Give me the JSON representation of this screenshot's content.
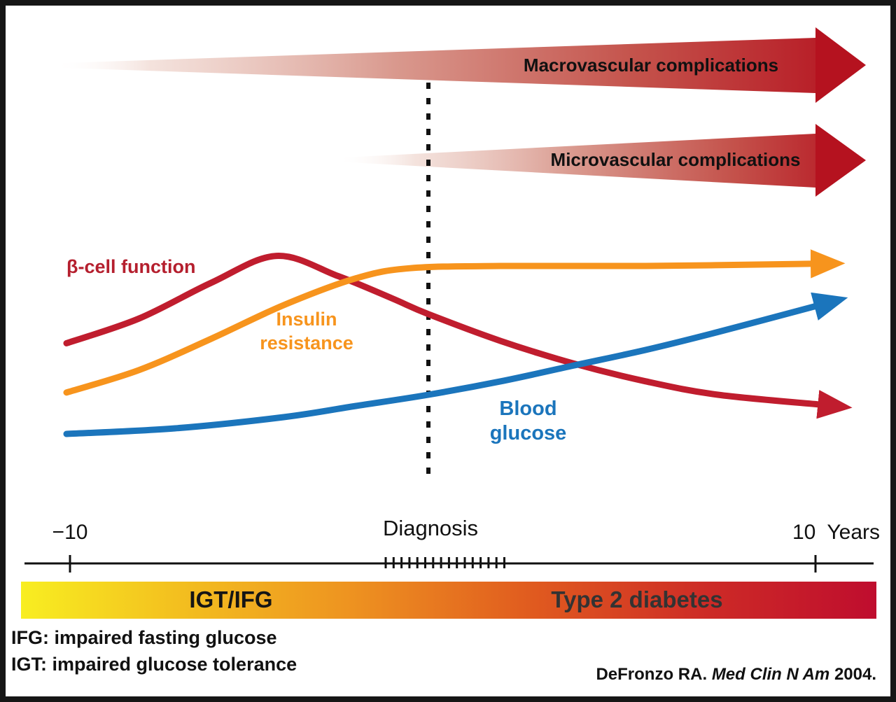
{
  "figure": {
    "complications": {
      "macro_label": "Macrovascular complications",
      "micro_label": "Microvascular complications"
    },
    "curve_labels": {
      "beta_cell": "β-cell function",
      "insulin_resistance": "Insulin\nresistance",
      "blood_glucose": "Blood\nglucose"
    },
    "axis": {
      "left_tick_label": "−10",
      "diagnosis_label": "Diagnosis",
      "right_tick_label": "10",
      "unit_label": "Years"
    },
    "stage_bar": {
      "left_label": "IGT/IFG",
      "right_label": "Type 2 diabetes"
    },
    "notes": [
      "IFG: impaired fasting glucose",
      "IGT: impaired glucose tolerance"
    ],
    "citation": {
      "author": "DeFronzo RA.",
      "journal": "Med Clin N Am",
      "year": "2004."
    },
    "colors": {
      "complication_red": "#b5121f",
      "beta_cell_red": "#c01d2e",
      "insulin_orange": "#f7941d",
      "glucose_blue": "#1b75bc",
      "bar_yellow": "#f8ee21",
      "bar_red": "#bf0d2e"
    }
  },
  "chart_data": {
    "type": "line",
    "xlabel": "Years",
    "x_range": [
      -10,
      11
    ],
    "x_ticks": [
      {
        "x": -10,
        "label": "−10"
      },
      {
        "x": 0,
        "label": "Diagnosis"
      },
      {
        "x": 10,
        "label": "10"
      }
    ],
    "y_axis": "relative level (schematic, unlabeled, 0–100)",
    "grid": false,
    "legend_position": "inline-labels",
    "series": [
      {
        "name": "β-cell function",
        "color": "#c01d2e",
        "points": [
          [
            -10,
            53
          ],
          [
            -8,
            64
          ],
          [
            -6,
            80
          ],
          [
            -4.2,
            92
          ],
          [
            -2.5,
            83
          ],
          [
            -1,
            73
          ],
          [
            0,
            66
          ],
          [
            2,
            54
          ],
          [
            4,
            44
          ],
          [
            6,
            36
          ],
          [
            8,
            30
          ],
          [
            10.9,
            25.5
          ]
        ]
      },
      {
        "name": "Insulin resistance",
        "color": "#f7941d",
        "points": [
          [
            -10,
            31
          ],
          [
            -8,
            41
          ],
          [
            -6,
            55
          ],
          [
            -4,
            70
          ],
          [
            -2,
            82
          ],
          [
            -0.5,
            86.5
          ],
          [
            2,
            87.5
          ],
          [
            6,
            87.5
          ],
          [
            10.7,
            88.5
          ]
        ]
      },
      {
        "name": "Blood glucose",
        "color": "#1b75bc",
        "points": [
          [
            -10,
            12.5
          ],
          [
            -7,
            15
          ],
          [
            -4,
            20
          ],
          [
            -2,
            25
          ],
          [
            0,
            30
          ],
          [
            2,
            36
          ],
          [
            4,
            43
          ],
          [
            6,
            50
          ],
          [
            8,
            58
          ],
          [
            10.8,
            70
          ]
        ]
      }
    ],
    "stages": [
      {
        "label": "IGT/IFG",
        "from": -10,
        "to": 0
      },
      {
        "label": "Type 2 diabetes",
        "from": 0,
        "to": 11
      }
    ],
    "complications": [
      {
        "label": "Macrovascular complications",
        "onset_years": -10
      },
      {
        "label": "Microvascular complications",
        "onset_years": -2.5
      }
    ]
  }
}
